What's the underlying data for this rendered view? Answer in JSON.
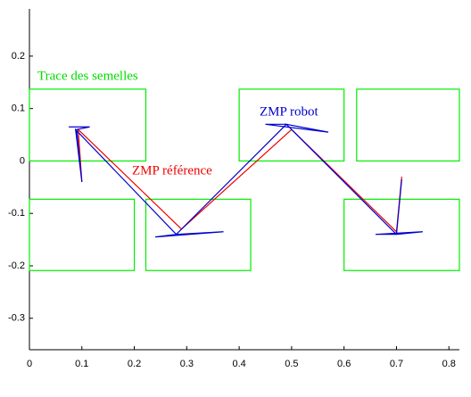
{
  "chart_data": {
    "type": "line",
    "xlim": [
      0,
      0.82
    ],
    "ylim": [
      -0.36,
      0.29
    ],
    "xticks": [
      0,
      0.1,
      0.2,
      0.3,
      0.4,
      0.5,
      0.6,
      0.7,
      0.8
    ],
    "yticks": [
      0.2,
      0.1,
      0,
      -0.1,
      -0.2,
      -0.3
    ],
    "footprints": {
      "name": "Trace des semelles",
      "color": "#00ee00",
      "rects": [
        {
          "x": [
            0,
            0.222
          ],
          "y": [
            0,
            0.137
          ]
        },
        {
          "x": [
            0,
            0.2
          ],
          "y": [
            -0.073,
            -0.209
          ]
        },
        {
          "x": [
            0.222,
            0.422
          ],
          "y": [
            -0.073,
            -0.209
          ]
        },
        {
          "x": [
            0.4,
            0.6
          ],
          "y": [
            0,
            0.137
          ]
        },
        {
          "x": [
            0.624,
            0.82
          ],
          "y": [
            0,
            0.137
          ]
        },
        {
          "x": [
            0.6,
            0.82
          ],
          "y": [
            -0.073,
            -0.209
          ]
        }
      ]
    },
    "series": [
      {
        "name": "ZMP référence",
        "color": "#ee0000",
        "x": [
          0.1,
          0.093,
          0.29,
          0.5,
          0.7,
          0.71
        ],
        "values": [
          -0.04,
          0.06,
          -0.13,
          0.06,
          -0.135,
          -0.03
        ]
      },
      {
        "name": "ZMP robot",
        "color": "#0000cc",
        "x": [
          0.075,
          0.115,
          0.09,
          0.1,
          0.088,
          0.28,
          0.24,
          0.37,
          0.28,
          0.49,
          0.45,
          0.57,
          0.49,
          0.7,
          0.66,
          0.75,
          0.7,
          0.71
        ],
        "values": [
          0.065,
          0.065,
          0.06,
          -0.04,
          0.06,
          -0.14,
          -0.145,
          -0.135,
          -0.14,
          0.07,
          0.07,
          0.055,
          0.07,
          -0.14,
          -0.14,
          -0.135,
          -0.14,
          -0.035
        ]
      }
    ]
  }
}
